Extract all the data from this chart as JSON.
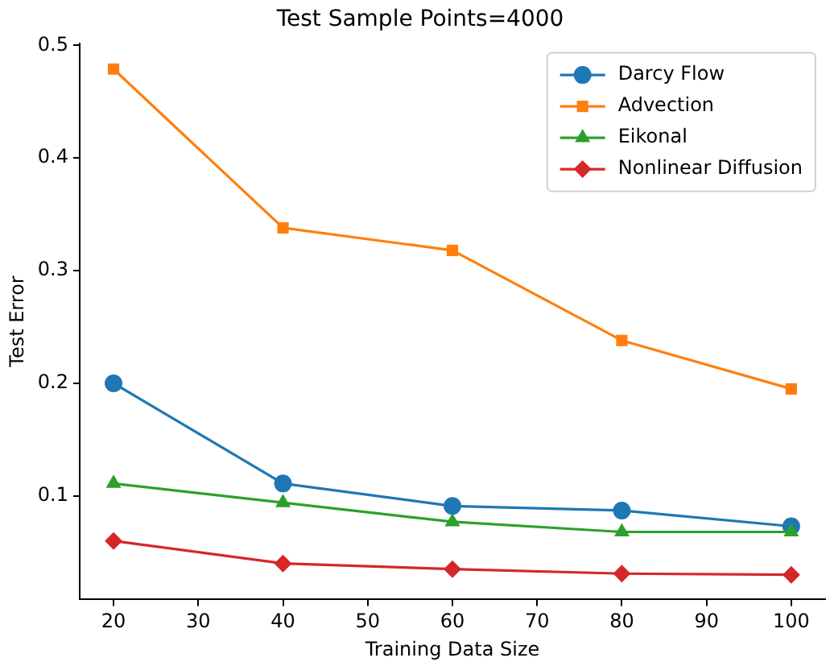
{
  "chart_data": {
    "type": "line",
    "title": "Test Sample Points=4000",
    "xlabel": "Training Data Size",
    "ylabel": "Test Error",
    "x": [
      20,
      40,
      60,
      80,
      100
    ],
    "xlim": [
      16,
      104
    ],
    "xticks": [
      20,
      30,
      40,
      50,
      60,
      70,
      80,
      90,
      100
    ],
    "ylim": [
      0.008,
      0.502
    ],
    "yticks": [
      0.1,
      0.2,
      0.3,
      0.4,
      0.5
    ],
    "grid": false,
    "legend": "top right",
    "line_style": "solid",
    "series": [
      {
        "name": "Darcy Flow",
        "color": "#1f77b4",
        "marker": "circle",
        "values": [
          0.2,
          0.111,
          0.091,
          0.087,
          0.073
        ]
      },
      {
        "name": "Advection",
        "color": "#ff7f0e",
        "marker": "square",
        "values": [
          0.479,
          0.338,
          0.318,
          0.238,
          0.195
        ]
      },
      {
        "name": "Eikonal",
        "color": "#2ca02c",
        "marker": "triangle",
        "values": [
          0.111,
          0.094,
          0.077,
          0.068,
          0.068
        ]
      },
      {
        "name": "Nonlinear Diffusion",
        "color": "#d62728",
        "marker": "diamond",
        "values": [
          0.06,
          0.04,
          0.035,
          0.031,
          0.03
        ]
      }
    ]
  }
}
